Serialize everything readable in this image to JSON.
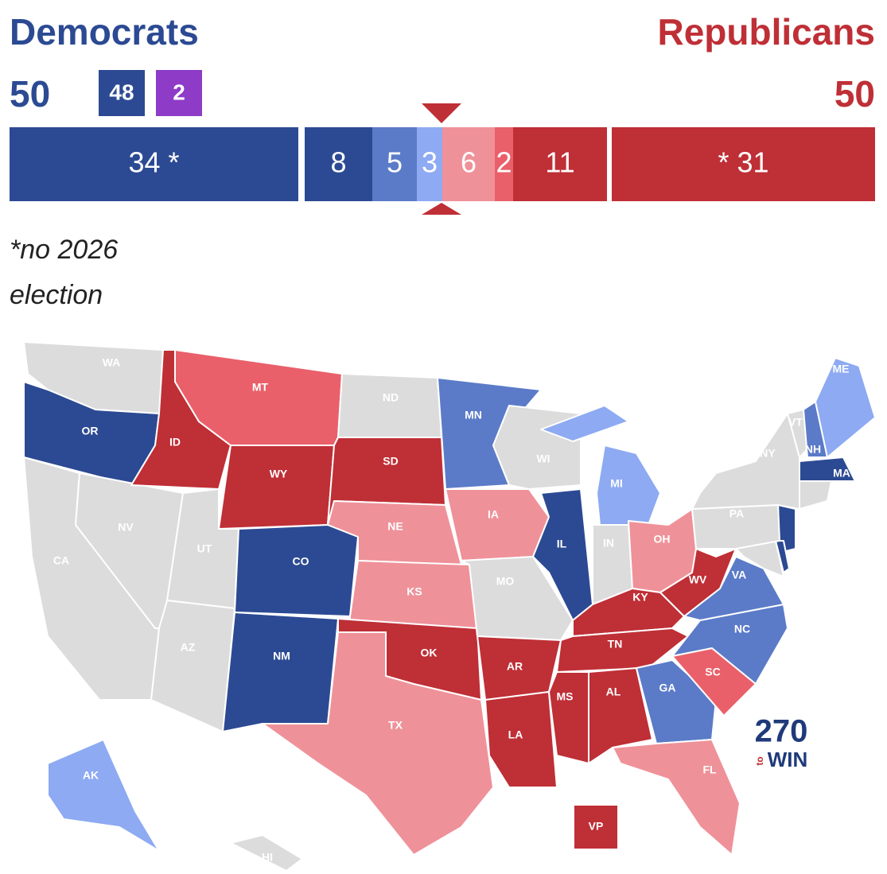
{
  "header": {
    "left_title": "Democrats",
    "right_title": "Republicans",
    "left_total": 50,
    "right_total": 50,
    "left_badges": [
      {
        "text": 48,
        "color": "#2c4a93"
      },
      {
        "text": 2,
        "color": "#8e3bc7"
      }
    ]
  },
  "seat_bar": {
    "segments": [
      {
        "label": "34 *",
        "color": "#2c4a93"
      },
      {
        "label": "8",
        "color": "#2c4a93"
      },
      {
        "label": "5",
        "color": "#5b7bc8"
      },
      {
        "label": "3",
        "color": "#8daaf2"
      },
      {
        "label": "6",
        "color": "#ef9199"
      },
      {
        "label": "2",
        "color": "#e9606a"
      },
      {
        "label": "11",
        "color": "#bf2f36"
      },
      {
        "label": "* 31",
        "color": "#bf2f36"
      }
    ]
  },
  "note": [
    "*no 2026",
    "election"
  ],
  "map": {
    "states": [
      {
        "label": "WA",
        "color": "#dcdcdc"
      },
      {
        "label": "OR",
        "color": "#2c4a93"
      },
      {
        "label": "CA",
        "color": "#dcdcdc"
      },
      {
        "label": "NV",
        "color": "#dcdcdc"
      },
      {
        "label": "ID",
        "color": "#bf2f36"
      },
      {
        "label": "MT",
        "color": "#e9606a"
      },
      {
        "label": "WY",
        "color": "#bf2f36"
      },
      {
        "label": "UT",
        "color": "#dcdcdc"
      },
      {
        "label": "AZ",
        "color": "#dcdcdc"
      },
      {
        "label": "CO",
        "color": "#2c4a93"
      },
      {
        "label": "NM",
        "color": "#2c4a93"
      },
      {
        "label": "ND",
        "color": "#dcdcdc"
      },
      {
        "label": "SD",
        "color": "#bf2f36"
      },
      {
        "label": "NE",
        "color": "#ef9199"
      },
      {
        "label": "KS",
        "color": "#ef9199"
      },
      {
        "label": "OK",
        "color": "#bf2f36"
      },
      {
        "label": "TX",
        "color": "#ef9199"
      },
      {
        "label": "MN",
        "color": "#5b7bc8"
      },
      {
        "label": "IA",
        "color": "#ef9199"
      },
      {
        "label": "MO",
        "color": "#dcdcdc"
      },
      {
        "label": "AR",
        "color": "#bf2f36"
      },
      {
        "label": "LA",
        "color": "#bf2f36"
      },
      {
        "label": "WI",
        "color": "#dcdcdc"
      },
      {
        "label": "IL",
        "color": "#2c4a93"
      },
      {
        "label": "MI",
        "color": "#8daaf2"
      },
      {
        "label": "IN",
        "color": "#dcdcdc"
      },
      {
        "label": "OH",
        "color": "#ef9199"
      },
      {
        "label": "KY",
        "color": "#bf2f36"
      },
      {
        "label": "TN",
        "color": "#bf2f36"
      },
      {
        "label": "MS",
        "color": "#bf2f36"
      },
      {
        "label": "AL",
        "color": "#bf2f36"
      },
      {
        "label": "GA",
        "color": "#5b7bc8"
      },
      {
        "label": "FL",
        "color": "#ef9199"
      },
      {
        "label": "SC",
        "color": "#e9606a"
      },
      {
        "label": "NC",
        "color": "#5b7bc8"
      },
      {
        "label": "VA",
        "color": "#5b7bc8"
      },
      {
        "label": "WV",
        "color": "#bf2f36"
      },
      {
        "label": "PA",
        "color": "#dcdcdc"
      },
      {
        "label": "NY",
        "color": "#dcdcdc"
      },
      {
        "label": "VT",
        "color": "#dcdcdc"
      },
      {
        "label": "NH",
        "color": "#5b7bc8"
      },
      {
        "label": "ME",
        "color": "#8daaf2"
      },
      {
        "label": "MA",
        "color": "#2c4a93"
      },
      {
        "label": "AK",
        "color": "#8daaf2"
      },
      {
        "label": "HI",
        "color": "#dcdcdc"
      },
      {
        "label": "VP",
        "color": "#bf2f36"
      }
    ]
  },
  "logo": [
    "270",
    "to",
    "WIN"
  ]
}
